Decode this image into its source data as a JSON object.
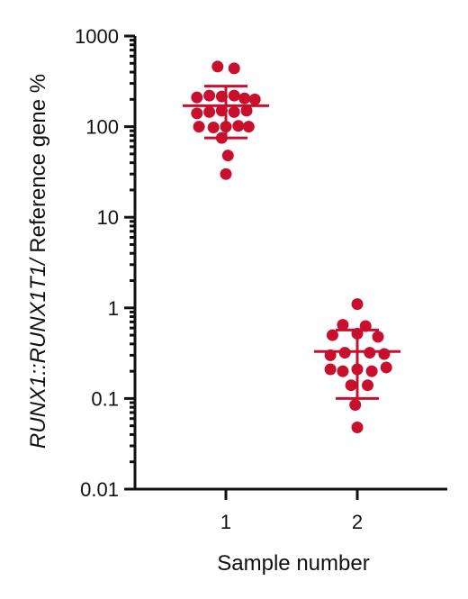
{
  "chart_data": {
    "type": "scatter",
    "title": "",
    "xlabel": "Sample number",
    "ylabel_parts": [
      {
        "text": "RUNX1::RUNX1T1/",
        "italic": true
      },
      {
        "text": " Reference gene %",
        "italic": false
      }
    ],
    "y_scale": "log",
    "ylim": [
      0.01,
      1000
    ],
    "y_ticks": [
      {
        "value": 0.01,
        "label": "0.01"
      },
      {
        "value": 0.1,
        "label": "0.1"
      },
      {
        "value": 1,
        "label": "1"
      },
      {
        "value": 10,
        "label": "10"
      },
      {
        "value": 100,
        "label": "100"
      },
      {
        "value": 1000,
        "label": "1000"
      }
    ],
    "x_ticks": [
      {
        "value": 1,
        "label": "1"
      },
      {
        "value": 2,
        "label": "2"
      }
    ],
    "marker_color": "#c8102e",
    "grid": false,
    "series": [
      {
        "x": 1,
        "mean": 170,
        "sd_upper": 280,
        "sd_lower": 75,
        "points": [
          {
            "dx": -0.04,
            "y": 460
          },
          {
            "dx": 0.04,
            "y": 440
          },
          {
            "dx": -0.14,
            "y": 210
          },
          {
            "dx": -0.08,
            "y": 220
          },
          {
            "dx": -0.02,
            "y": 215
          },
          {
            "dx": 0.04,
            "y": 220
          },
          {
            "dx": 0.09,
            "y": 205
          },
          {
            "dx": 0.14,
            "y": 200
          },
          {
            "dx": -0.14,
            "y": 140
          },
          {
            "dx": -0.08,
            "y": 145
          },
          {
            "dx": -0.02,
            "y": 150
          },
          {
            "dx": 0.04,
            "y": 145
          },
          {
            "dx": 0.1,
            "y": 150
          },
          {
            "dx": -0.13,
            "y": 100
          },
          {
            "dx": -0.06,
            "y": 98
          },
          {
            "dx": 0.0,
            "y": 100
          },
          {
            "dx": 0.06,
            "y": 102
          },
          {
            "dx": 0.11,
            "y": 100
          },
          {
            "dx": -0.02,
            "y": 75
          },
          {
            "dx": 0.01,
            "y": 48
          },
          {
            "dx": 0.0,
            "y": 30
          }
        ]
      },
      {
        "x": 2,
        "mean": 0.33,
        "sd_upper": 0.57,
        "sd_lower": 0.1,
        "points": [
          {
            "dx": 0.0,
            "y": 1.1
          },
          {
            "dx": -0.07,
            "y": 0.65
          },
          {
            "dx": 0.04,
            "y": 0.63
          },
          {
            "dx": -0.12,
            "y": 0.5
          },
          {
            "dx": 0.0,
            "y": 0.52
          },
          {
            "dx": 0.1,
            "y": 0.48
          },
          {
            "dx": -0.13,
            "y": 0.3
          },
          {
            "dx": -0.06,
            "y": 0.32
          },
          {
            "dx": 0.06,
            "y": 0.32
          },
          {
            "dx": 0.13,
            "y": 0.31
          },
          {
            "dx": -0.13,
            "y": 0.21
          },
          {
            "dx": -0.07,
            "y": 0.2
          },
          {
            "dx": 0.0,
            "y": 0.21
          },
          {
            "dx": 0.07,
            "y": 0.2
          },
          {
            "dx": 0.14,
            "y": 0.22
          },
          {
            "dx": -0.03,
            "y": 0.14
          },
          {
            "dx": 0.05,
            "y": 0.14
          },
          {
            "dx": -0.01,
            "y": 0.085
          },
          {
            "dx": 0.0,
            "y": 0.048
          }
        ]
      }
    ]
  }
}
